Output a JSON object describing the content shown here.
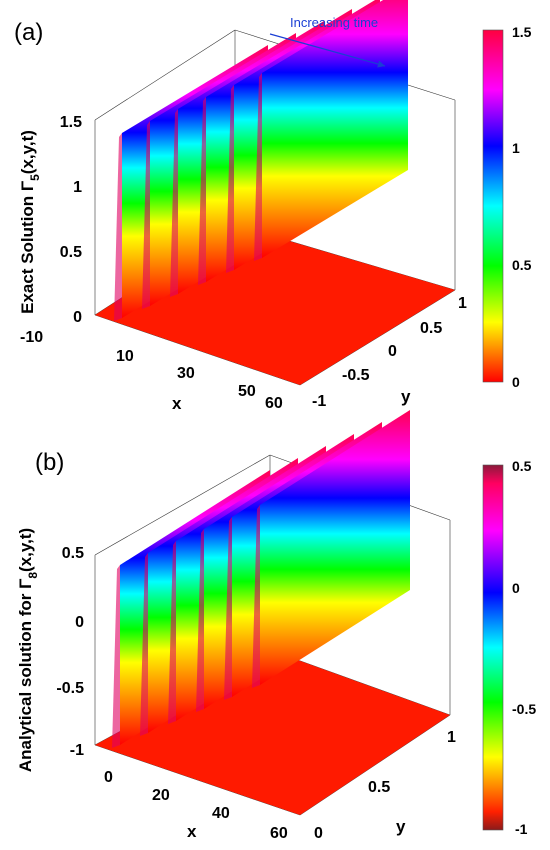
{
  "chart_data": [
    {
      "type": "surface",
      "panel_label": "(a)",
      "annotation": "Increasing time",
      "zlabel": "Exact Solution Γ",
      "zlabel_sub": "5",
      "zlabel_tail": "(x,y,t)",
      "xlabel": "x",
      "ylabel": "y",
      "xlim": [
        -10,
        60
      ],
      "ylim": [
        -1,
        1
      ],
      "zlim": [
        0,
        1.5
      ],
      "x_ticks": [
        "-10",
        "10",
        "30",
        "50",
        "60"
      ],
      "y_ticks": [
        "-1",
        "-0.5",
        "0",
        "0.5",
        "1"
      ],
      "z_ticks": [
        "0",
        "0.5",
        "1",
        "1.5"
      ],
      "colorbar_ticks": [
        "0",
        "0.5",
        "1",
        "1.5"
      ],
      "colorbar_range": [
        0,
        1.5
      ],
      "colormap": "hsv",
      "baseline": 0,
      "peak": 1.5,
      "num_ridges": 6
    },
    {
      "type": "surface",
      "panel_label": "(b)",
      "zlabel": "Analytical solution for Γ",
      "zlabel_sub": "8",
      "zlabel_tail": "(x,y,t)",
      "xlabel": "x",
      "ylabel": "y",
      "xlim": [
        -5,
        60
      ],
      "ylim": [
        0,
        1
      ],
      "zlim": [
        -1,
        0.5
      ],
      "x_ticks": [
        "0",
        "20",
        "40",
        "60"
      ],
      "y_ticks": [
        "0",
        "0.5",
        "1"
      ],
      "z_ticks": [
        "-1",
        "-0.5",
        "0",
        "0.5"
      ],
      "colorbar_ticks": [
        "-1",
        "-0.5",
        "0",
        "0.5"
      ],
      "colorbar_range": [
        -1,
        0.5
      ],
      "colormap": "hsv",
      "baseline": -1,
      "peak": 0.5,
      "num_ridges": 6
    }
  ]
}
